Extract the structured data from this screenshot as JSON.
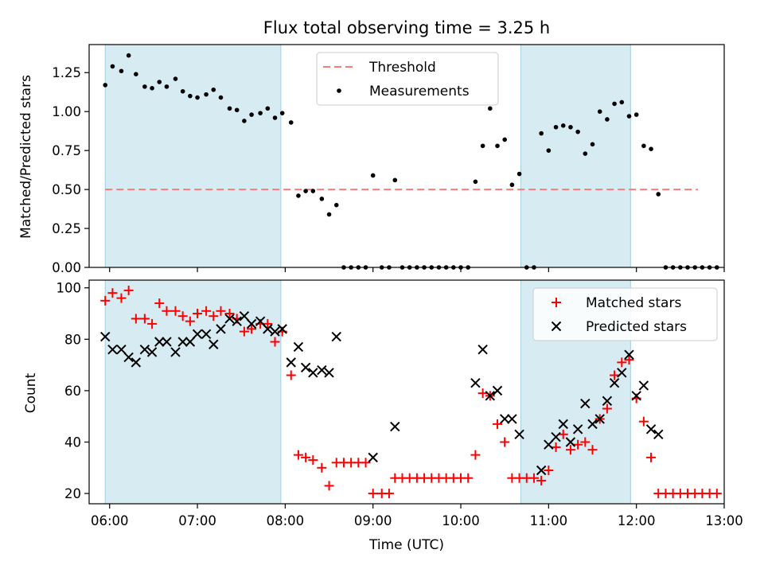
{
  "chart_data": [
    {
      "type": "scatter",
      "title": "Flux total observing time = 3.25 h",
      "ylabel": "Matched/Predicted stars",
      "xlabel": "",
      "xlim": [
        "05:46",
        "13:00"
      ],
      "ylim": [
        0,
        1.43
      ],
      "yticks": [
        "0.00",
        "0.25",
        "0.50",
        "0.75",
        "1.00",
        "1.25"
      ],
      "shaded_intervals": [
        [
          "05:57",
          "07:57"
        ],
        [
          "10:41",
          "11:56"
        ]
      ],
      "threshold": {
        "name": "Threshold",
        "value": 0.5,
        "x_range": [
          "05:57",
          "12:42"
        ],
        "color": "#f08080"
      },
      "legend": {
        "position": "top-center",
        "entries": [
          "Threshold",
          "Measurements"
        ]
      },
      "series": [
        {
          "name": "Measurements",
          "marker": "dot",
          "color": "#000000",
          "points": [
            [
              "05:57",
              1.17
            ],
            [
              "06:02",
              1.29
            ],
            [
              "06:08",
              1.26
            ],
            [
              "06:13",
              1.36
            ],
            [
              "06:18",
              1.24
            ],
            [
              "06:24",
              1.16
            ],
            [
              "06:29",
              1.15
            ],
            [
              "06:34",
              1.19
            ],
            [
              "06:39",
              1.16
            ],
            [
              "06:45",
              1.21
            ],
            [
              "06:50",
              1.13
            ],
            [
              "06:55",
              1.1
            ],
            [
              "07:00",
              1.09
            ],
            [
              "07:06",
              1.11
            ],
            [
              "07:11",
              1.14
            ],
            [
              "07:16",
              1.09
            ],
            [
              "07:22",
              1.02
            ],
            [
              "07:27",
              1.01
            ],
            [
              "07:32",
              0.94
            ],
            [
              "07:37",
              0.98
            ],
            [
              "07:43",
              0.99
            ],
            [
              "07:48",
              1.02
            ],
            [
              "07:53",
              0.96
            ],
            [
              "07:58",
              0.99
            ],
            [
              "08:04",
              0.93
            ],
            [
              "08:09",
              0.46
            ],
            [
              "08:14",
              0.49
            ],
            [
              "08:19",
              0.49
            ],
            [
              "08:25",
              0.44
            ],
            [
              "08:30",
              0.34
            ],
            [
              "08:35",
              0.4
            ],
            [
              "08:40",
              0.0
            ],
            [
              "08:45",
              0.0
            ],
            [
              "08:50",
              0.0
            ],
            [
              "08:55",
              0.0
            ],
            [
              "09:00",
              0.59
            ],
            [
              "09:06",
              0.0
            ],
            [
              "09:11",
              0.0
            ],
            [
              "09:15",
              0.56
            ],
            [
              "09:20",
              0.0
            ],
            [
              "09:25",
              0.0
            ],
            [
              "09:30",
              0.0
            ],
            [
              "09:35",
              0.0
            ],
            [
              "09:40",
              0.0
            ],
            [
              "09:45",
              0.0
            ],
            [
              "09:50",
              0.0
            ],
            [
              "09:55",
              0.0
            ],
            [
              "10:00",
              0.0
            ],
            [
              "10:05",
              0.0
            ],
            [
              "10:10",
              0.55
            ],
            [
              "10:15",
              0.78
            ],
            [
              "10:20",
              1.02
            ],
            [
              "10:25",
              0.78
            ],
            [
              "10:30",
              0.82
            ],
            [
              "10:35",
              0.53
            ],
            [
              "10:40",
              0.6
            ],
            [
              "10:45",
              0.0
            ],
            [
              "10:50",
              0.0
            ],
            [
              "10:55",
              0.86
            ],
            [
              "11:00",
              0.75
            ],
            [
              "11:05",
              0.9
            ],
            [
              "11:10",
              0.91
            ],
            [
              "11:15",
              0.9
            ],
            [
              "11:20",
              0.87
            ],
            [
              "11:25",
              0.73
            ],
            [
              "11:30",
              0.79
            ],
            [
              "11:35",
              1.0
            ],
            [
              "11:40",
              0.95
            ],
            [
              "11:45",
              1.05
            ],
            [
              "11:50",
              1.06
            ],
            [
              "11:55",
              0.97
            ],
            [
              "12:00",
              0.98
            ],
            [
              "12:05",
              0.78
            ],
            [
              "12:10",
              0.76
            ],
            [
              "12:15",
              0.47
            ],
            [
              "12:20",
              0.0
            ],
            [
              "12:25",
              0.0
            ],
            [
              "12:30",
              0.0
            ],
            [
              "12:35",
              0.0
            ],
            [
              "12:40",
              0.0
            ],
            [
              "12:45",
              0.0
            ],
            [
              "12:50",
              0.0
            ],
            [
              "12:55",
              0.0
            ]
          ]
        }
      ]
    },
    {
      "type": "scatter",
      "title": "",
      "xlabel": "Time (UTC)",
      "ylabel": "Count",
      "xlim": [
        "05:46",
        "13:00"
      ],
      "ylim": [
        16,
        103
      ],
      "xticks": [
        "06:00",
        "07:00",
        "08:00",
        "09:00",
        "10:00",
        "11:00",
        "12:00",
        "13:00"
      ],
      "yticks": [
        "20",
        "40",
        "60",
        "80",
        "100"
      ],
      "shaded_intervals": [
        [
          "05:57",
          "07:57"
        ],
        [
          "10:41",
          "11:56"
        ]
      ],
      "legend": {
        "position": "top-right",
        "entries": [
          "Matched stars",
          "Predicted stars"
        ]
      },
      "series": [
        {
          "name": "Matched stars",
          "marker": "plus",
          "color": "#ff0000",
          "points": [
            [
              "05:57",
              95
            ],
            [
              "06:02",
              98
            ],
            [
              "06:08",
              96
            ],
            [
              "06:13",
              99
            ],
            [
              "06:18",
              88
            ],
            [
              "06:24",
              88
            ],
            [
              "06:29",
              86
            ],
            [
              "06:34",
              94
            ],
            [
              "06:39",
              91
            ],
            [
              "06:45",
              91
            ],
            [
              "06:50",
              89
            ],
            [
              "06:55",
              87
            ],
            [
              "07:00",
              90
            ],
            [
              "07:06",
              91
            ],
            [
              "07:11",
              89
            ],
            [
              "07:16",
              91
            ],
            [
              "07:22",
              90
            ],
            [
              "07:27",
              88
            ],
            [
              "07:32",
              83
            ],
            [
              "07:37",
              84
            ],
            [
              "07:43",
              86
            ],
            [
              "07:48",
              86
            ],
            [
              "07:53",
              79
            ],
            [
              "07:58",
              83
            ],
            [
              "08:04",
              66
            ],
            [
              "08:09",
              35
            ],
            [
              "08:14",
              34
            ],
            [
              "08:19",
              33
            ],
            [
              "08:25",
              30
            ],
            [
              "08:30",
              23
            ],
            [
              "08:35",
              32
            ],
            [
              "08:40",
              32
            ],
            [
              "08:45",
              32
            ],
            [
              "08:50",
              32
            ],
            [
              "08:55",
              32
            ],
            [
              "09:00",
              20
            ],
            [
              "09:06",
              20
            ],
            [
              "09:11",
              20
            ],
            [
              "09:15",
              26
            ],
            [
              "09:20",
              26
            ],
            [
              "09:25",
              26
            ],
            [
              "09:30",
              26
            ],
            [
              "09:35",
              26
            ],
            [
              "09:40",
              26
            ],
            [
              "09:45",
              26
            ],
            [
              "09:50",
              26
            ],
            [
              "09:55",
              26
            ],
            [
              "10:00",
              26
            ],
            [
              "10:05",
              26
            ],
            [
              "10:10",
              35
            ],
            [
              "10:15",
              59
            ],
            [
              "10:20",
              58
            ],
            [
              "10:25",
              47
            ],
            [
              "10:30",
              40
            ],
            [
              "10:35",
              26
            ],
            [
              "10:40",
              26
            ],
            [
              "10:45",
              26
            ],
            [
              "10:50",
              26
            ],
            [
              "10:55",
              25
            ],
            [
              "11:00",
              29
            ],
            [
              "11:05",
              38
            ],
            [
              "11:10",
              43
            ],
            [
              "11:15",
              37
            ],
            [
              "11:20",
              39
            ],
            [
              "11:25",
              40
            ],
            [
              "11:30",
              37
            ],
            [
              "11:35",
              49
            ],
            [
              "11:40",
              53
            ],
            [
              "11:45",
              66
            ],
            [
              "11:50",
              71
            ],
            [
              "11:55",
              72
            ],
            [
              "12:00",
              57
            ],
            [
              "12:05",
              48
            ],
            [
              "12:10",
              34
            ],
            [
              "12:15",
              20
            ],
            [
              "12:20",
              20
            ],
            [
              "12:25",
              20
            ],
            [
              "12:30",
              20
            ],
            [
              "12:35",
              20
            ],
            [
              "12:40",
              20
            ],
            [
              "12:45",
              20
            ],
            [
              "12:50",
              20
            ],
            [
              "12:55",
              20
            ]
          ]
        },
        {
          "name": "Predicted stars",
          "marker": "x",
          "color": "#000000",
          "points": [
            [
              "05:57",
              81
            ],
            [
              "06:02",
              76
            ],
            [
              "06:08",
              76
            ],
            [
              "06:13",
              73
            ],
            [
              "06:18",
              71
            ],
            [
              "06:24",
              76
            ],
            [
              "06:29",
              75
            ],
            [
              "06:34",
              79
            ],
            [
              "06:39",
              79
            ],
            [
              "06:45",
              75
            ],
            [
              "06:50",
              79
            ],
            [
              "06:55",
              79
            ],
            [
              "07:00",
              82
            ],
            [
              "07:06",
              82
            ],
            [
              "07:11",
              78
            ],
            [
              "07:16",
              84
            ],
            [
              "07:22",
              88
            ],
            [
              "07:27",
              87
            ],
            [
              "07:32",
              89
            ],
            [
              "07:37",
              86
            ],
            [
              "07:43",
              87
            ],
            [
              "07:48",
              84
            ],
            [
              "07:53",
              83
            ],
            [
              "07:58",
              84
            ],
            [
              "08:04",
              71
            ],
            [
              "08:09",
              77
            ],
            [
              "08:14",
              69
            ],
            [
              "08:19",
              67
            ],
            [
              "08:25",
              68
            ],
            [
              "08:30",
              67
            ],
            [
              "08:35",
              81
            ],
            [
              "09:00",
              34
            ],
            [
              "09:15",
              46
            ],
            [
              "10:10",
              63
            ],
            [
              "10:15",
              76
            ],
            [
              "10:20",
              58
            ],
            [
              "10:25",
              60
            ],
            [
              "10:30",
              49
            ],
            [
              "10:35",
              49
            ],
            [
              "10:40",
              43
            ],
            [
              "10:55",
              29
            ],
            [
              "11:00",
              39
            ],
            [
              "11:05",
              42
            ],
            [
              "11:10",
              47
            ],
            [
              "11:15",
              40
            ],
            [
              "11:20",
              45
            ],
            [
              "11:25",
              55
            ],
            [
              "11:30",
              47
            ],
            [
              "11:35",
              49
            ],
            [
              "11:40",
              56
            ],
            [
              "11:45",
              63
            ],
            [
              "11:50",
              67
            ],
            [
              "11:55",
              74
            ],
            [
              "12:00",
              58
            ],
            [
              "12:05",
              62
            ],
            [
              "12:10",
              45
            ],
            [
              "12:15",
              43
            ]
          ]
        }
      ]
    }
  ]
}
